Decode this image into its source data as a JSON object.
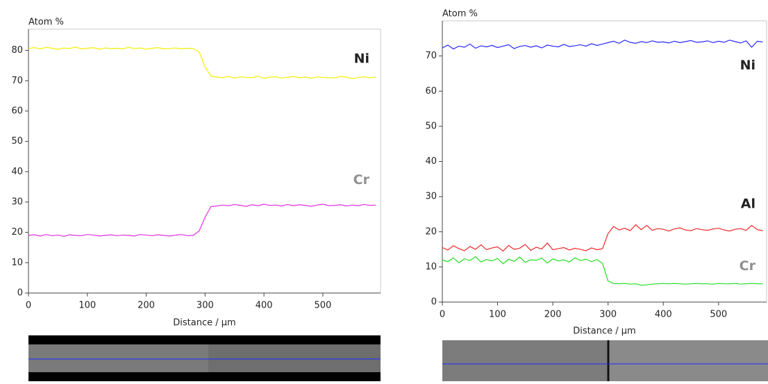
{
  "chart_data": [
    {
      "type": "line",
      "y_label": "Atom %",
      "x_label": "Distance / µm",
      "xlim": [
        0,
        598
      ],
      "ylim": [
        0,
        87
      ],
      "xticks": [
        0,
        100,
        200,
        300,
        400,
        500
      ],
      "yticks": [
        0,
        10,
        20,
        30,
        40,
        50,
        60,
        70,
        80
      ],
      "x": [
        0,
        10,
        20,
        30,
        40,
        50,
        60,
        70,
        80,
        90,
        100,
        110,
        120,
        130,
        140,
        150,
        160,
        170,
        180,
        190,
        200,
        210,
        220,
        230,
        240,
        250,
        260,
        270,
        280,
        290,
        300,
        310,
        320,
        330,
        340,
        350,
        360,
        370,
        380,
        390,
        400,
        410,
        420,
        430,
        440,
        450,
        460,
        470,
        480,
        490,
        500,
        510,
        520,
        530,
        540,
        550,
        560,
        570,
        580,
        590
      ],
      "series": [
        {
          "name": "Ni",
          "color": "#f0f000",
          "values": [
            80.6,
            80.9,
            80.5,
            81.0,
            80.7,
            80.4,
            80.8,
            80.6,
            81.1,
            80.5,
            80.7,
            80.9,
            80.4,
            80.8,
            80.6,
            80.7,
            80.5,
            81.0,
            80.6,
            80.8,
            80.4,
            80.7,
            80.9,
            80.5,
            80.6,
            80.8,
            80.5,
            80.7,
            80.6,
            79.5,
            74.5,
            71.5,
            71.2,
            71.0,
            71.4,
            70.9,
            71.3,
            71.1,
            71.0,
            71.5,
            70.8,
            71.2,
            71.3,
            70.9,
            71.1,
            71.4,
            71.0,
            71.2,
            70.8,
            71.3,
            71.1,
            71.0,
            70.9,
            71.4,
            71.2,
            70.7,
            71.1,
            71.3,
            71.0,
            71.2
          ]
        },
        {
          "name": "Cr",
          "color": "#e030e0",
          "values": [
            19.0,
            19.2,
            18.8,
            19.3,
            18.9,
            19.1,
            18.7,
            19.2,
            19.0,
            18.9,
            19.3,
            19.1,
            18.8,
            19.0,
            19.2,
            18.9,
            19.1,
            19.0,
            18.8,
            19.3,
            19.1,
            18.9,
            19.2,
            19.0,
            18.8,
            19.1,
            19.3,
            18.9,
            19.0,
            20.5,
            25.0,
            28.5,
            28.7,
            29.0,
            28.8,
            29.2,
            28.9,
            28.6,
            29.1,
            28.8,
            29.3,
            28.9,
            29.0,
            28.7,
            29.2,
            28.8,
            29.1,
            28.9,
            28.6,
            29.0,
            29.3,
            28.8,
            28.9,
            29.1,
            28.7,
            29.0,
            28.8,
            29.2,
            28.9,
            29.0
          ]
        }
      ]
    },
    {
      "type": "line",
      "y_label": "Atom %",
      "x_label": "Distance / µm",
      "xlim": [
        0,
        587
      ],
      "ylim": [
        0,
        80
      ],
      "xticks": [
        0,
        100,
        200,
        300,
        400,
        500
      ],
      "yticks": [
        0,
        10,
        20,
        30,
        40,
        50,
        60,
        70
      ],
      "x": [
        0,
        10,
        20,
        30,
        40,
        50,
        60,
        70,
        80,
        90,
        100,
        110,
        120,
        130,
        140,
        150,
        160,
        170,
        180,
        190,
        200,
        210,
        220,
        230,
        240,
        250,
        260,
        270,
        280,
        290,
        300,
        310,
        320,
        330,
        340,
        350,
        360,
        370,
        380,
        390,
        400,
        410,
        420,
        430,
        440,
        450,
        460,
        470,
        480,
        490,
        500,
        510,
        520,
        530,
        540,
        550,
        560,
        570,
        580
      ],
      "series": [
        {
          "name": "Ni",
          "color": "#2828ff",
          "values": [
            72.3,
            73.1,
            72.0,
            72.8,
            72.5,
            73.4,
            72.2,
            72.9,
            72.6,
            73.0,
            72.4,
            72.8,
            73.2,
            72.1,
            72.7,
            73.0,
            72.5,
            72.9,
            72.3,
            73.1,
            72.8,
            72.6,
            73.3,
            72.7,
            72.9,
            73.2,
            72.8,
            73.5,
            73.0,
            73.4,
            73.8,
            74.2,
            73.6,
            74.5,
            73.9,
            73.6,
            74.1,
            73.8,
            74.3,
            73.9,
            74.0,
            73.7,
            74.2,
            73.8,
            74.1,
            74.4,
            73.9,
            74.0,
            74.3,
            73.8,
            74.2,
            73.9,
            74.5,
            74.1,
            73.7,
            74.3,
            72.5,
            74.2,
            74.0
          ]
        },
        {
          "name": "Al",
          "color": "#f02828",
          "values": [
            15.5,
            14.8,
            16.0,
            15.2,
            14.6,
            15.8,
            15.0,
            16.3,
            14.9,
            15.4,
            15.7,
            14.5,
            16.1,
            15.0,
            15.3,
            16.4,
            14.7,
            15.6,
            15.1,
            16.8,
            14.9,
            15.2,
            15.5,
            14.8,
            15.3,
            15.0,
            14.6,
            15.4,
            14.9,
            15.2,
            19.5,
            21.5,
            20.5,
            21.0,
            20.3,
            22.0,
            20.6,
            21.8,
            20.4,
            20.9,
            20.7,
            20.2,
            20.8,
            21.1,
            20.5,
            20.3,
            20.9,
            20.6,
            20.4,
            20.8,
            21.0,
            20.5,
            20.2,
            20.7,
            20.9,
            20.4,
            21.8,
            20.6,
            20.3
          ]
        },
        {
          "name": "Cr",
          "color": "#20dd20",
          "values": [
            12.0,
            11.5,
            12.6,
            11.2,
            12.3,
            11.8,
            12.9,
            11.4,
            12.1,
            11.7,
            12.4,
            10.9,
            12.2,
            11.6,
            12.8,
            11.3,
            12.0,
            11.9,
            12.5,
            11.1,
            12.3,
            11.7,
            12.0,
            11.4,
            12.6,
            11.8,
            12.2,
            11.5,
            12.1,
            11.0,
            6.0,
            5.3,
            5.2,
            5.3,
            5.1,
            5.2,
            4.8,
            4.9,
            5.1,
            5.2,
            5.3,
            5.2,
            5.3,
            5.2,
            5.1,
            5.2,
            5.3,
            5.2,
            5.2,
            5.1,
            5.3,
            5.2,
            5.2,
            5.3,
            5.1,
            5.2,
            5.3,
            5.2,
            5.2
          ]
        }
      ]
    }
  ]
}
